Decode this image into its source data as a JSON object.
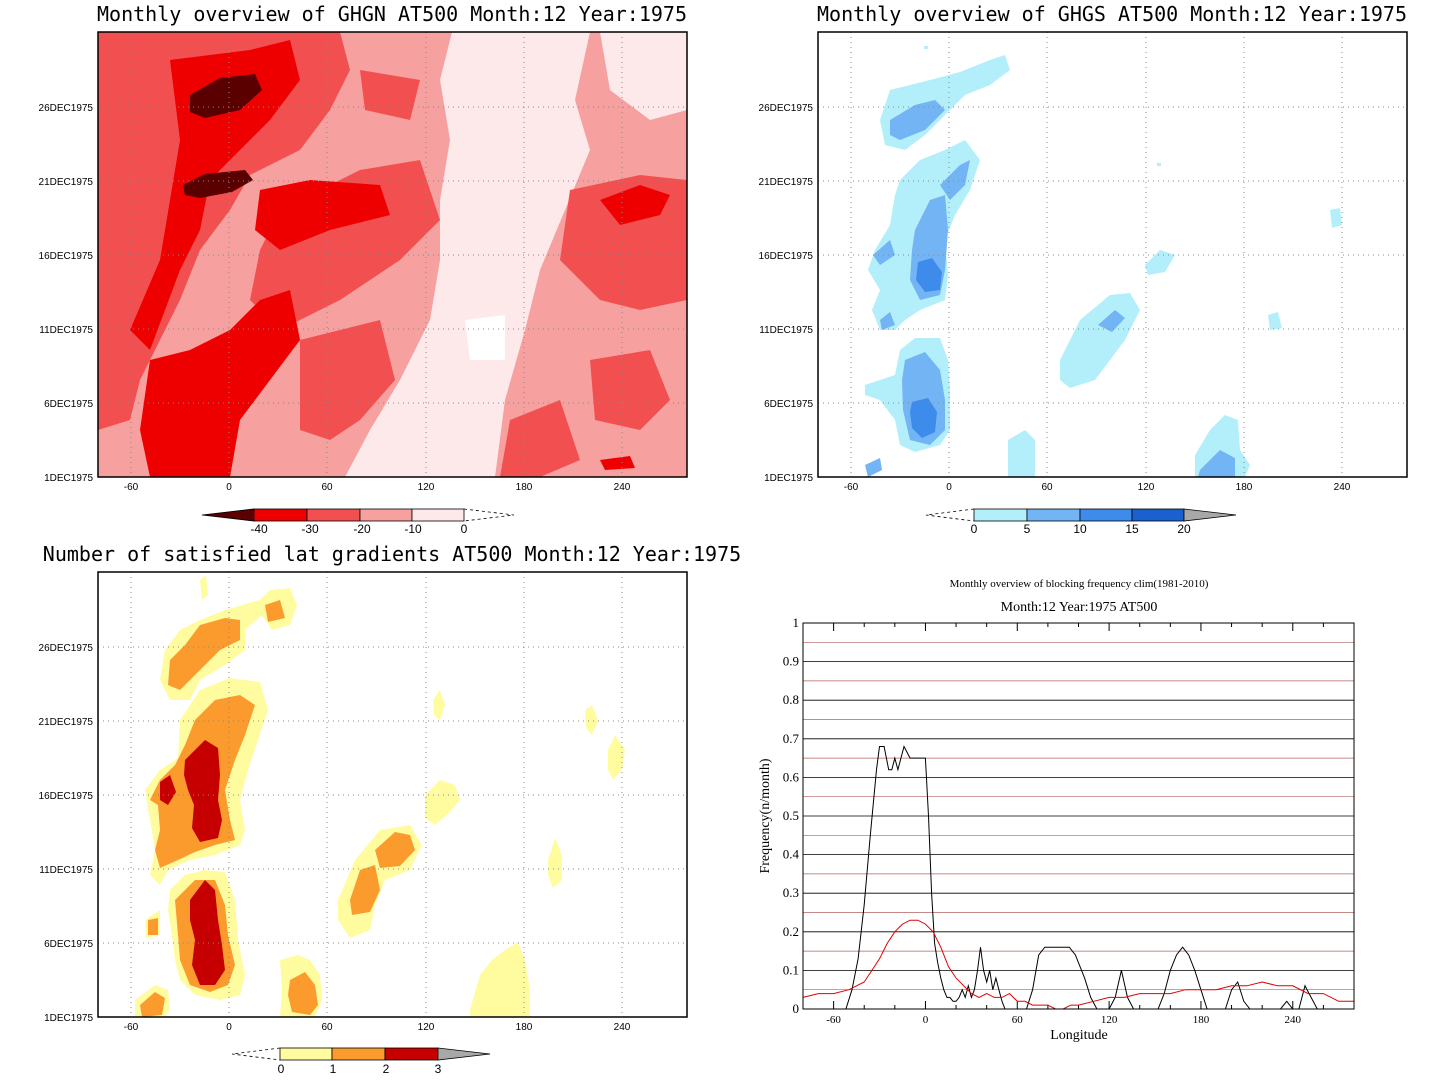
{
  "panels": {
    "ghgn": {
      "title": "Monthly overview of GHGN AT500 Month:12 Year:1975"
    },
    "ghgs": {
      "title": "Monthly overview of GHGS AT500 Month:12 Year:1975"
    },
    "grad": {
      "title": "Number of satisfied lat gradients AT500 Month:12 Year:1975"
    },
    "freq": {
      "title_line1": "Monthly overview of blocking frequency clim(1981-2010)",
      "title_line2": "Month:12 Year:1975  AT500"
    }
  },
  "colors": {
    "red_scale": [
      "#5a0000",
      "#ee0000",
      "#f25050",
      "#f7a0a0",
      "#fde9e9"
    ],
    "blue_scale": [
      "#b2effa",
      "#73b4f4",
      "#3d8cec",
      "#1a60cf",
      "#a8a8a8"
    ],
    "yellow_scale": [
      "#fffca0",
      "#fb9b2e",
      "#c60000",
      "#a8a8a8"
    ],
    "freq_line_black": "#000000",
    "freq_line_red": "#e00000"
  },
  "chart_data": [
    {
      "type": "heatmap",
      "title": "Monthly overview of GHGN AT500 Month:12 Year:1975",
      "x_ticks": [
        "-60",
        "0",
        "60",
        "120",
        "180",
        "240"
      ],
      "y_ticks": [
        "1DEC1975",
        "6DEC1975",
        "11DEC1975",
        "16DEC1975",
        "21DEC1975",
        "26DEC1975"
      ],
      "colorbar_labels": [
        "-40",
        "-30",
        "-20",
        "-10",
        "0"
      ]
    },
    {
      "type": "heatmap",
      "title": "Monthly overview of GHGS AT500 Month:12 Year:1975",
      "x_ticks": [
        "-60",
        "0",
        "60",
        "120",
        "180",
        "240"
      ],
      "y_ticks": [
        "1DEC1975",
        "6DEC1975",
        "11DEC1975",
        "16DEC1975",
        "21DEC1975",
        "26DEC1975"
      ],
      "colorbar_labels": [
        "0",
        "5",
        "10",
        "15",
        "20"
      ]
    },
    {
      "type": "heatmap",
      "title": "Number of satisfied lat gradients AT500 Month:12 Year:1975",
      "x_ticks": [
        "-60",
        "0",
        "60",
        "120",
        "180",
        "240"
      ],
      "y_ticks": [
        "1DEC1975",
        "6DEC1975",
        "11DEC1975",
        "16DEC1975",
        "21DEC1975",
        "26DEC1975"
      ],
      "colorbar_labels": [
        "0",
        "1",
        "2",
        "3"
      ]
    },
    {
      "type": "line",
      "title": "Monthly overview of blocking frequency clim(1981-2010)",
      "subtitle": "Month:12 Year:1975  AT500",
      "xlabel": "Longitude",
      "ylabel": "Frequency(n/month)",
      "xlim": [
        -80,
        280
      ],
      "ylim": [
        0,
        1
      ],
      "x_ticks": [
        "-60",
        "0",
        "60",
        "120",
        "180",
        "240"
      ],
      "y_ticks": [
        "0",
        "0.1",
        "0.2",
        "0.3",
        "0.4",
        "0.5",
        "0.6",
        "0.7",
        "0.8",
        "0.9",
        "1"
      ],
      "series": [
        {
          "color": "#000000",
          "x": [
            -80,
            -52,
            -48,
            -44,
            -40,
            -36,
            -32,
            -30,
            -27,
            -24,
            -22,
            -20,
            -18,
            -14,
            -10,
            -6,
            -2,
            0,
            2,
            4,
            6,
            8,
            10,
            12,
            14,
            16,
            18,
            20,
            22,
            24,
            26,
            28,
            30,
            32,
            34,
            36,
            38,
            40,
            42,
            44,
            46,
            48,
            50,
            52,
            56,
            60,
            64,
            66,
            70,
            74,
            78,
            82,
            86,
            90,
            94,
            98,
            104,
            108,
            112,
            116,
            120,
            124,
            128,
            132,
            136,
            140,
            144,
            148,
            152,
            156,
            160,
            164,
            168,
            172,
            176,
            180,
            184,
            188,
            192,
            196,
            200,
            204,
            208,
            212,
            216,
            220,
            224,
            228,
            232,
            236,
            240,
            244,
            248,
            252,
            256,
            260,
            264,
            268,
            272,
            276,
            280
          ],
          "values": [
            0,
            0,
            0.05,
            0.13,
            0.27,
            0.45,
            0.62,
            0.68,
            0.68,
            0.62,
            0.62,
            0.65,
            0.62,
            0.68,
            0.65,
            0.65,
            0.65,
            0.65,
            0.5,
            0.3,
            0.17,
            0.12,
            0.08,
            0.05,
            0.03,
            0.03,
            0.02,
            0.02,
            0.03,
            0.05,
            0.03,
            0.06,
            0.03,
            0.05,
            0.1,
            0.16,
            0.1,
            0.07,
            0.1,
            0.05,
            0.08,
            0.05,
            0.02,
            0,
            0,
            0,
            0,
            0,
            0.05,
            0.14,
            0.16,
            0.16,
            0.16,
            0.16,
            0.16,
            0.14,
            0.08,
            0.03,
            0,
            0,
            0,
            0.03,
            0.1,
            0.03,
            0,
            0,
            0,
            0,
            0,
            0.04,
            0.1,
            0.14,
            0.16,
            0.14,
            0.1,
            0.05,
            0,
            0,
            0,
            0,
            0.05,
            0.07,
            0.02,
            0,
            0,
            0,
            0,
            0,
            0,
            0.02,
            0,
            0,
            0.06,
            0.03,
            0,
            0,
            0,
            0,
            0,
            0,
            0
          ]
        },
        {
          "color": "#e00000",
          "x": [
            -80,
            -70,
            -60,
            -50,
            -45,
            -40,
            -35,
            -30,
            -25,
            -20,
            -15,
            -10,
            -5,
            0,
            5,
            10,
            15,
            20,
            25,
            30,
            35,
            40,
            45,
            50,
            55,
            60,
            65,
            70,
            75,
            80,
            85,
            90,
            95,
            100,
            110,
            120,
            130,
            140,
            150,
            160,
            170,
            180,
            190,
            200,
            210,
            220,
            230,
            240,
            250,
            260,
            270,
            280
          ],
          "values": [
            0.03,
            0.04,
            0.04,
            0.05,
            0.06,
            0.07,
            0.1,
            0.13,
            0.17,
            0.2,
            0.22,
            0.23,
            0.23,
            0.22,
            0.2,
            0.16,
            0.11,
            0.08,
            0.06,
            0.04,
            0.03,
            0.04,
            0.03,
            0.03,
            0.04,
            0.02,
            0.02,
            0.01,
            0.01,
            0.01,
            0,
            0,
            0.01,
            0.01,
            0.02,
            0.03,
            0.03,
            0.04,
            0.04,
            0.04,
            0.05,
            0.05,
            0.05,
            0.06,
            0.06,
            0.07,
            0.06,
            0.06,
            0.04,
            0.04,
            0.02,
            0.02
          ]
        }
      ]
    }
  ]
}
